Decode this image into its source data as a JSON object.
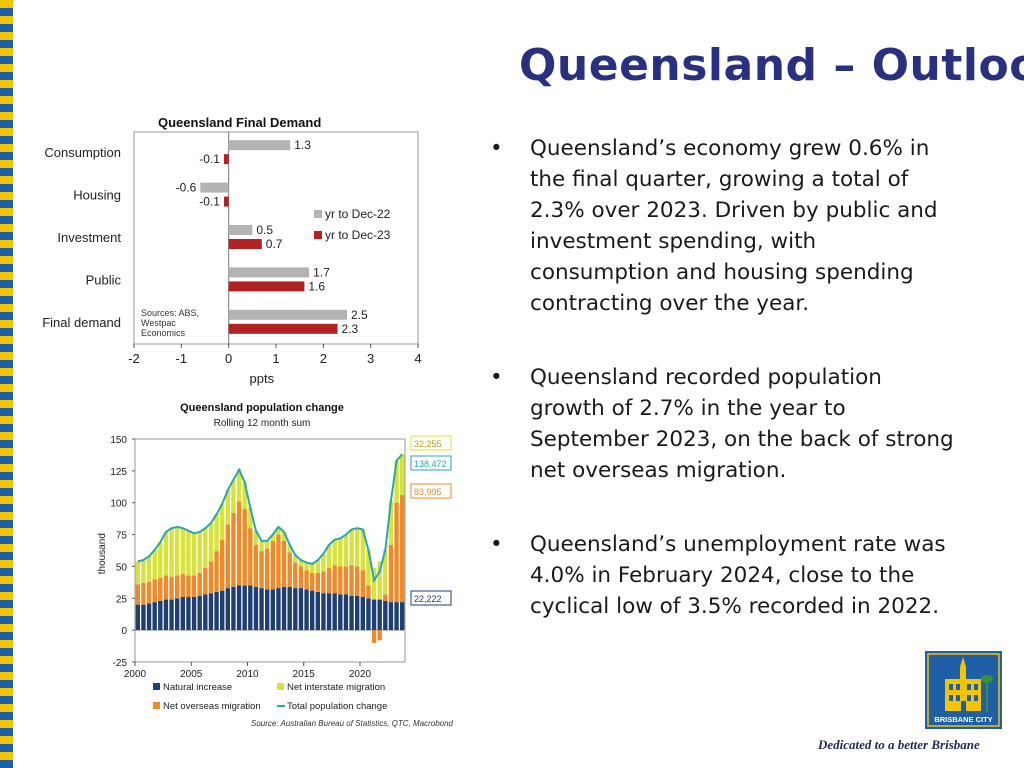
{
  "slide": {
    "title": "Queensland – Outlook",
    "bullets": [
      "Queensland’s economy grew 0.6% in the final quarter, growing a total of 2.3% over 2023. Driven by public and investment spending, with consumption and housing spending contracting over the year.",
      "Queensland recorded population growth of 2.7% in the year to September 2023, on the back of strong net overseas migration.",
      "Queensland’s unemployment rate was 4.0% in February 2024, close to the cyclical low of 3.5% recorded in 2022."
    ],
    "bullet_symbol": "•",
    "logo_text": "BRISBANE CITY",
    "tagline": "Dedicated to a better Brisbane"
  },
  "colors": {
    "title": "#2a3080",
    "stripe_yellow": "#f5c400",
    "stripe_blue": "#1f5fa8",
    "bar_2022": "#b3b3b3",
    "bar_2023": "#b22222",
    "natural": "#1f3f73",
    "interstate": "#d7e33a",
    "overseas": "#ef8a2a",
    "total": "#29a6b5"
  },
  "chart_data": [
    {
      "type": "bar",
      "orientation": "horizontal",
      "title": "Queensland Final Demand",
      "categories": [
        "Consumption",
        "Housing",
        "Investment",
        "Public",
        "Final demand"
      ],
      "series": [
        {
          "name": "yr to Dec-22",
          "values": [
            1.3,
            -0.6,
            0.5,
            1.7,
            2.5
          ]
        },
        {
          "name": "yr to Dec-23",
          "values": [
            -0.1,
            -0.1,
            0.7,
            1.6,
            2.3
          ]
        }
      ],
      "xlabel": "ppts",
      "xlim": [
        -2,
        4
      ],
      "xticks": [
        -2,
        -1,
        0,
        1,
        2,
        3,
        4
      ],
      "legend": "right",
      "note": "Sources: ABS, Westpac Economics"
    },
    {
      "type": "area",
      "title": "Queensland population change",
      "subtitle": "Rolling 12 month sum",
      "ylabel": "thousand",
      "ylim": [
        -25,
        150
      ],
      "yticks": [
        -25,
        0,
        25,
        50,
        75,
        100,
        125,
        150
      ],
      "xticks": [
        2000,
        2005,
        2010,
        2015,
        2020
      ],
      "x": [
        2000,
        2000.5,
        2001,
        2001.5,
        2002,
        2002.5,
        2003,
        2003.5,
        2004,
        2004.5,
        2005,
        2005.5,
        2006,
        2006.5,
        2007,
        2007.5,
        2008,
        2008.5,
        2009,
        2009.5,
        2010,
        2010.5,
        2011,
        2011.5,
        2012,
        2012.5,
        2013,
        2013.5,
        2014,
        2014.5,
        2015,
        2015.5,
        2016,
        2016.5,
        2017,
        2017.5,
        2018,
        2018.5,
        2019,
        2019.5,
        2020,
        2020.5,
        2021,
        2021.5,
        2022,
        2022.5,
        2023,
        2023.5
      ],
      "series": [
        {
          "name": "Natural increase",
          "values": [
            20,
            20,
            21,
            22,
            23,
            24,
            24,
            25,
            26,
            26,
            26,
            27,
            28,
            29,
            30,
            31,
            33,
            34,
            35,
            35,
            35,
            34,
            33,
            32,
            32,
            33,
            34,
            34,
            33,
            33,
            32,
            31,
            30,
            29,
            29,
            29,
            28,
            28,
            27,
            27,
            26,
            25,
            24,
            24,
            23,
            22,
            22,
            22
          ]
        },
        {
          "name": "Net overseas migration",
          "values": [
            16,
            17,
            17,
            18,
            18,
            19,
            18,
            18,
            18,
            17,
            17,
            18,
            21,
            25,
            32,
            40,
            50,
            58,
            66,
            60,
            45,
            33,
            29,
            32,
            38,
            42,
            36,
            27,
            20,
            17,
            15,
            14,
            15,
            17,
            20,
            22,
            22,
            22,
            24,
            23,
            21,
            10,
            -10,
            -8,
            5,
            45,
            78,
            84
          ]
        },
        {
          "name": "Net interstate migration",
          "values": [
            18,
            18,
            20,
            23,
            28,
            34,
            38,
            38,
            36,
            35,
            33,
            32,
            31,
            30,
            29,
            28,
            27,
            26,
            25,
            21,
            16,
            11,
            8,
            6,
            5,
            6,
            7,
            6,
            6,
            5,
            6,
            7,
            10,
            14,
            18,
            20,
            22,
            25,
            28,
            30,
            32,
            28,
            25,
            30,
            35,
            34,
            33,
            32
          ]
        },
        {
          "name": "Total population change",
          "values": [
            54,
            55,
            58,
            63,
            69,
            77,
            80,
            81,
            80,
            78,
            76,
            77,
            80,
            84,
            91,
            99,
            110,
            118,
            126,
            116,
            96,
            78,
            70,
            70,
            75,
            81,
            77,
            67,
            59,
            55,
            53,
            52,
            55,
            60,
            67,
            71,
            72,
            75,
            79,
            80,
            79,
            63,
            39,
            46,
            63,
            101,
            133,
            138
          ]
        }
      ],
      "latest_labels": [
        "32,255",
        "138,472",
        "83,995",
        "22,222"
      ],
      "legend": "bottom",
      "source": "Source: Australian Bureau of Statistics, QTC, Macrobond"
    }
  ]
}
